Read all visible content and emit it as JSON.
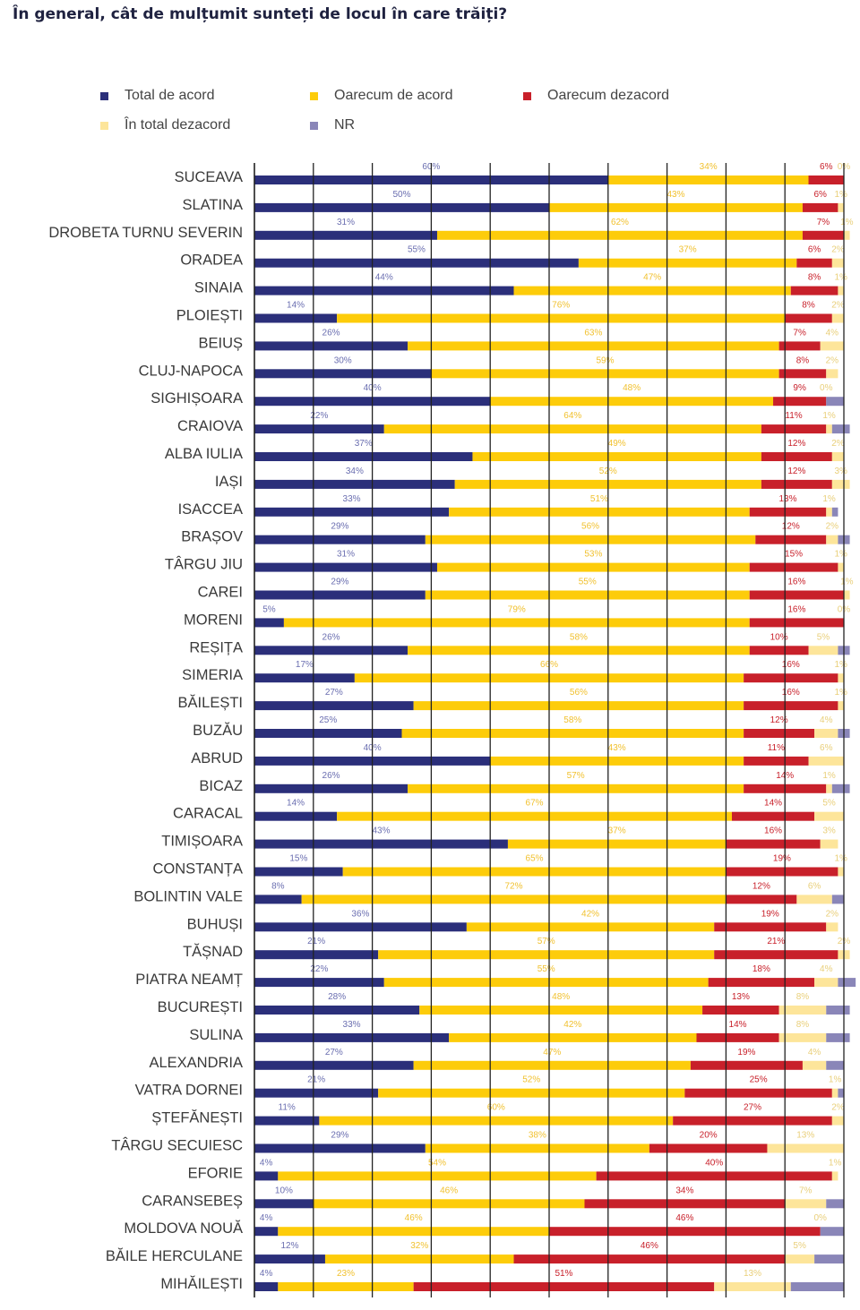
{
  "title": "În general, cât de mulțumit sunteți de locul în care trăiți?",
  "colors": {
    "total_de_acord": "#2b2f7a",
    "oarecum_de_acord": "#fdcc0a",
    "oarecum_dezacord": "#c8202a",
    "in_total_dezacord": "#fde59a",
    "nr": "#8a86b8",
    "gridline": "#222222"
  },
  "legend": {
    "total_de_acord": "Total de acord",
    "oarecum_de_acord": "Oarecum de acord",
    "oarecum_dezacord": "Oarecum dezacord",
    "in_total_dezacord": "În total dezacord",
    "nr": "NR"
  },
  "chart_data": {
    "type": "bar",
    "orientation": "horizontal",
    "stacked": true,
    "legend_position": "top",
    "grid": true,
    "xlim": [
      0,
      100
    ],
    "categories": [
      "SUCEAVA",
      "SLATINA",
      "DROBETA TURNU SEVERIN",
      "ORADEA",
      "SINAIA",
      "PLOIEȘTI",
      "BEIUȘ",
      "CLUJ-NAPOCA",
      "SIGHIȘOARA",
      "CRAIOVA",
      "ALBA IULIA",
      "IAȘI",
      "ISACCEA",
      "BRAȘOV",
      "TÂRGU JIU",
      "CAREI",
      "MORENI",
      "REȘIȚA",
      "SIMERIA",
      "BĂILEȘTI",
      "BUZĂU",
      "ABRUD",
      "BICAZ",
      "CARACAL",
      "TIMIȘOARA",
      "CONSTANȚA",
      "BOLINTIN VALE",
      "BUHUȘI",
      "TĂȘNAD",
      "PIATRA NEAMȚ",
      "BUCUREȘTI",
      "SULINA",
      "ALEXANDRIA",
      "VATRA DORNEI",
      "ȘTEFĂNEȘTI",
      "TÂRGU SECUIESC",
      "EFORIE",
      "CARANSEBEȘ",
      "MOLDOVA NOUĂ",
      "BĂILE HERCULANE",
      "MIHĂILEȘTI"
    ],
    "series": [
      {
        "name": "Total de acord",
        "key": "total_de_acord",
        "values": [
          60,
          50,
          31,
          55,
          44,
          14,
          26,
          30,
          40,
          22,
          37,
          34,
          33,
          29,
          31,
          29,
          5,
          26,
          17,
          27,
          25,
          40,
          26,
          14,
          43,
          15,
          8,
          36,
          21,
          22,
          28,
          33,
          27,
          21,
          11,
          29,
          4,
          10,
          4,
          12,
          4
        ]
      },
      {
        "name": "Oarecum de acord",
        "key": "oarecum_de_acord",
        "values": [
          34,
          43,
          62,
          37,
          47,
          76,
          63,
          59,
          48,
          64,
          49,
          52,
          51,
          56,
          53,
          55,
          79,
          58,
          66,
          56,
          58,
          43,
          57,
          67,
          37,
          65,
          72,
          42,
          57,
          55,
          48,
          42,
          47,
          52,
          60,
          38,
          54,
          46,
          46,
          32,
          23
        ]
      },
      {
        "name": "Oarecum dezacord",
        "key": "oarecum_dezacord",
        "values": [
          6,
          6,
          7,
          6,
          8,
          8,
          7,
          8,
          9,
          11,
          12,
          12,
          13,
          12,
          15,
          16,
          16,
          10,
          16,
          16,
          12,
          11,
          14,
          14,
          16,
          19,
          12,
          19,
          21,
          18,
          13,
          14,
          19,
          25,
          27,
          20,
          40,
          34,
          46,
          46,
          51
        ]
      },
      {
        "name": "În total dezacord",
        "key": "in_total_dezacord",
        "values": [
          0,
          1,
          1,
          2,
          1,
          2,
          4,
          2,
          0,
          1,
          2,
          3,
          1,
          2,
          1,
          1,
          0,
          5,
          1,
          1,
          4,
          6,
          1,
          5,
          3,
          1,
          6,
          2,
          2,
          4,
          8,
          8,
          4,
          1,
          2,
          13,
          1,
          7,
          0,
          5,
          13
        ]
      },
      {
        "name": "NR",
        "key": "nr",
        "values": [
          0,
          0,
          0,
          0,
          0,
          0,
          0,
          0,
          3,
          3,
          0,
          0,
          1,
          2,
          0,
          0,
          0,
          2,
          0,
          0,
          2,
          0,
          3,
          0,
          0,
          0,
          2,
          0,
          0,
          3,
          4,
          4,
          3,
          1,
          0,
          0,
          0,
          3,
          4,
          5,
          9
        ]
      }
    ]
  }
}
